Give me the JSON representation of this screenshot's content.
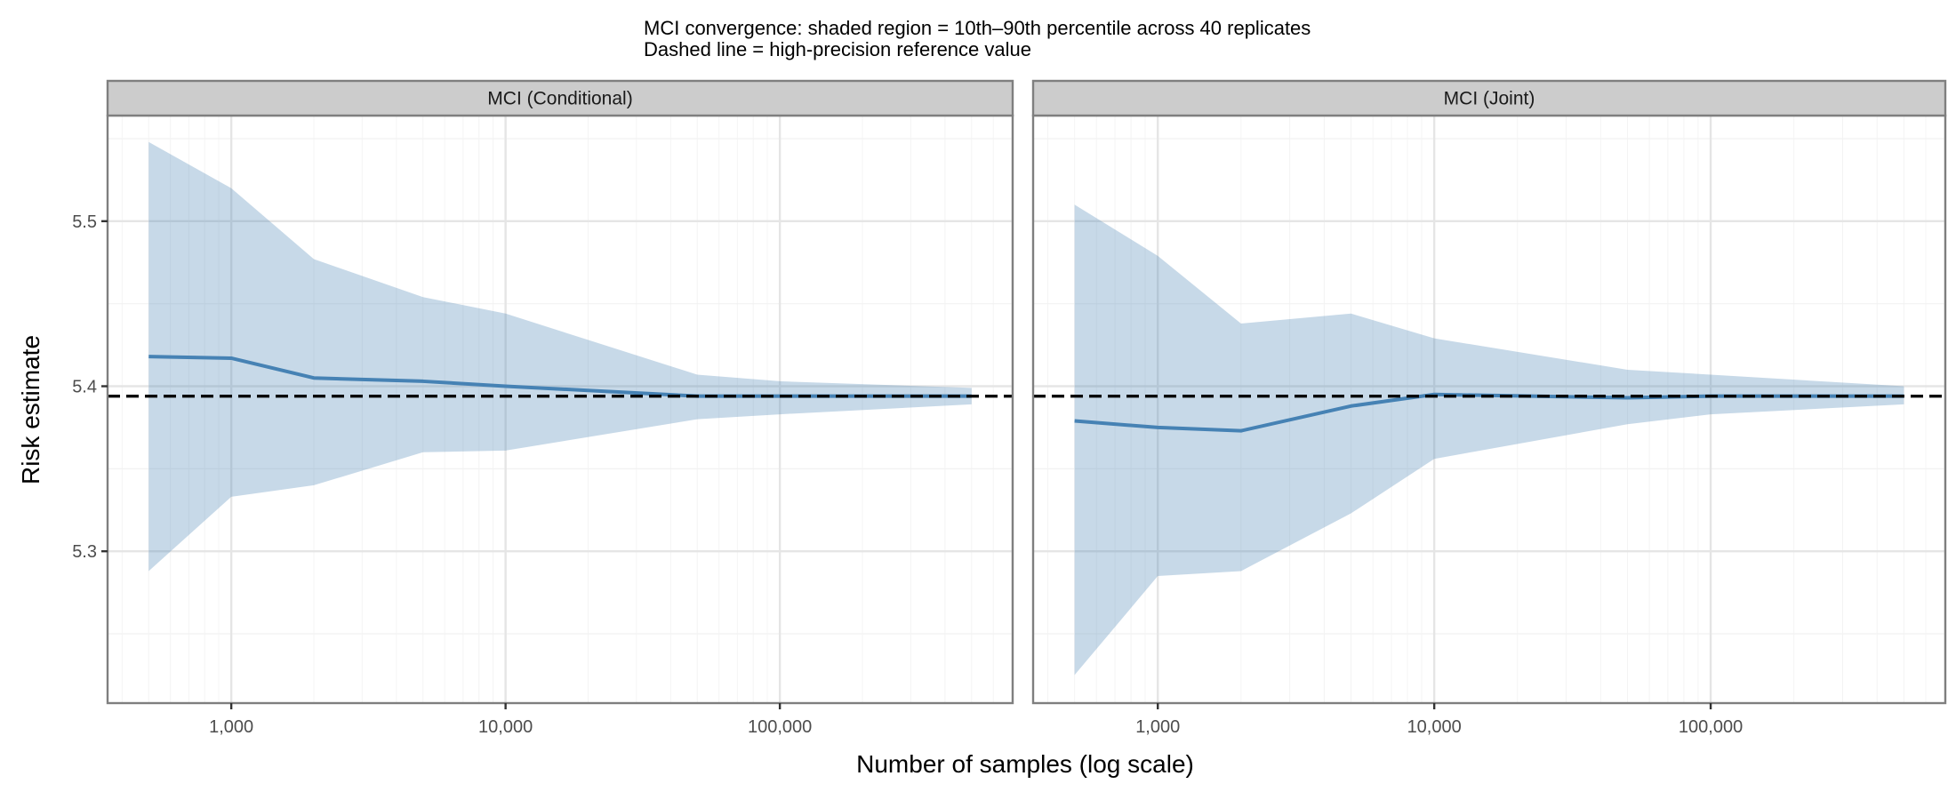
{
  "chart_data": {
    "type": "area",
    "title": "MCI convergence: shaded region = 10th–90th percentile across 40 replicates",
    "subtitle": "Dashed line = high-precision reference value",
    "xlabel": "Number of samples (log scale)",
    "ylabel": "Risk estimate",
    "x_scale": "log10",
    "xlim": [
      354,
      706000
    ],
    "ylim": [
      5.208,
      5.564
    ],
    "x_ticks": [
      1000,
      10000,
      100000
    ],
    "x_tick_labels": [
      "1,000",
      "10,000",
      "100,000"
    ],
    "y_ticks": [
      5.3,
      5.4,
      5.5
    ],
    "y_tick_labels": [
      "5.3",
      "5.4",
      "5.5"
    ],
    "grid": true,
    "reference_value": 5.394,
    "colors": {
      "band": "#4682b4",
      "band_opacity": 0.3,
      "line": "#4682b4",
      "reference": "#000000",
      "strip": "#cccccc",
      "frame": "#7f7f7f"
    },
    "x": [
      500,
      1000,
      2000,
      5000,
      10000,
      50000,
      100000,
      500000
    ],
    "panels": [
      {
        "label": "MCI (Conditional)",
        "mean": [
          5.418,
          5.417,
          5.405,
          5.403,
          5.4,
          5.394,
          5.394,
          5.394
        ],
        "lower": [
          5.288,
          5.333,
          5.34,
          5.36,
          5.361,
          5.38,
          5.383,
          5.389
        ],
        "upper": [
          5.548,
          5.52,
          5.477,
          5.454,
          5.444,
          5.407,
          5.403,
          5.399
        ]
      },
      {
        "label": "MCI (Joint)",
        "mean": [
          5.379,
          5.375,
          5.373,
          5.388,
          5.395,
          5.393,
          5.394,
          5.394
        ],
        "lower": [
          5.225,
          5.285,
          5.288,
          5.323,
          5.356,
          5.377,
          5.383,
          5.389
        ],
        "upper": [
          5.51,
          5.479,
          5.438,
          5.444,
          5.429,
          5.41,
          5.407,
          5.4
        ]
      }
    ]
  }
}
